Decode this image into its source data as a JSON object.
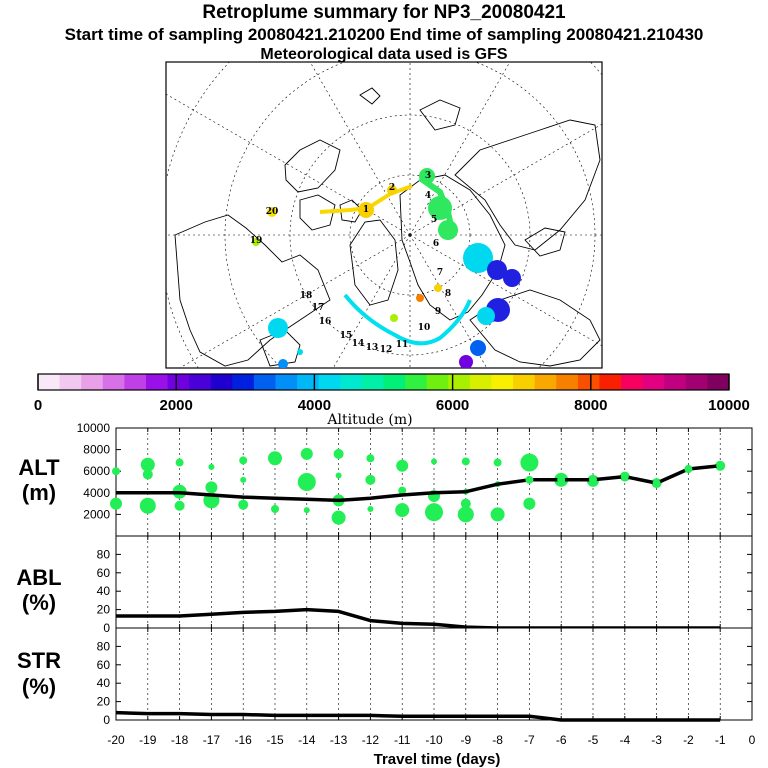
{
  "title": "Retroplume summary for NP3_20080421",
  "subtitle": "Start time of sampling 20080421.210200     End time of sampling 20080421.210430",
  "met_note": "Meteorological data used is GFS",
  "colorbar": {
    "label": "Altitude (m)",
    "ticks": [
      "0",
      "2000",
      "4000",
      "6000",
      "8000",
      "10000"
    ],
    "colors": [
      "#f8e8f8",
      "#f0c8f0",
      "#e8a0e8",
      "#d870e8",
      "#c040e8",
      "#9a10e8",
      "#7000e0",
      "#4a00d8",
      "#2000d0",
      "#0020e0",
      "#0060f0",
      "#0090f8",
      "#00b8f8",
      "#00d8f0",
      "#00e8d0",
      "#00f0a8",
      "#00f078",
      "#30f040",
      "#70f010",
      "#a8f000",
      "#d8f000",
      "#f8f000",
      "#f8d000",
      "#f8a800",
      "#f88000",
      "#f85000",
      "#f82000",
      "#f80060",
      "#e00080",
      "#c00080",
      "#a00070",
      "#800060"
    ]
  },
  "map": {
    "day_labels": [
      "20",
      "19",
      "18",
      "17",
      "16",
      "15",
      "14",
      "13",
      "12",
      "11",
      "10",
      "9",
      "8",
      "7",
      "6",
      "5",
      "4",
      "3",
      "2",
      "1"
    ]
  },
  "chart_data": [
    {
      "type": "line",
      "panel": "ALT",
      "ylabel": "ALT\n(m)",
      "ylabel_line1": "ALT",
      "ylabel_line2": "(m)",
      "ylim": [
        0,
        10000
      ],
      "yticks": [
        2000,
        4000,
        6000,
        8000,
        10000
      ],
      "x": [
        -20,
        -19,
        -18,
        -17,
        -16,
        -15,
        -14,
        -13,
        -12,
        -11,
        -10,
        -9,
        -8,
        -7,
        -6,
        -5,
        -4,
        -3,
        -2,
        -1
      ],
      "series": [
        {
          "name": "mean altitude",
          "values": [
            4000,
            4000,
            4000,
            3800,
            3600,
            3500,
            3400,
            3300,
            3500,
            3800,
            4000,
            4100,
            4800,
            5200,
            5200,
            5200,
            5500,
            4900,
            6200,
            6500
          ]
        }
      ],
      "scatter_color": "#22ee55",
      "scatter": [
        [
          -20,
          6000
        ],
        [
          -20,
          3000
        ],
        [
          -19,
          6600
        ],
        [
          -19,
          5700
        ],
        [
          -19,
          2800
        ],
        [
          -18,
          6800
        ],
        [
          -18,
          4100
        ],
        [
          -18,
          2800
        ],
        [
          -17,
          6400
        ],
        [
          -17,
          4500
        ],
        [
          -17,
          3300
        ],
        [
          -16,
          7000
        ],
        [
          -16,
          5200
        ],
        [
          -16,
          2900
        ],
        [
          -15,
          7200
        ],
        [
          -15,
          2500
        ],
        [
          -14,
          7600
        ],
        [
          -14,
          5000
        ],
        [
          -14,
          2400
        ],
        [
          -13,
          7600
        ],
        [
          -13,
          5600
        ],
        [
          -13,
          3300
        ],
        [
          -13,
          1700
        ],
        [
          -12,
          7200
        ],
        [
          -12,
          5200
        ],
        [
          -12,
          2500
        ],
        [
          -11,
          6500
        ],
        [
          -11,
          4200
        ],
        [
          -11,
          2400
        ],
        [
          -10,
          6900
        ],
        [
          -10,
          3700
        ],
        [
          -10,
          2200
        ],
        [
          -9,
          6900
        ],
        [
          -9,
          4100
        ],
        [
          -9,
          3000
        ],
        [
          -9,
          2000
        ],
        [
          -8,
          6800
        ],
        [
          -8,
          4800
        ],
        [
          -8,
          2000
        ],
        [
          -7,
          6800
        ],
        [
          -7,
          5200
        ],
        [
          -7,
          3000
        ],
        [
          -6,
          5200
        ],
        [
          -5,
          5100
        ],
        [
          -4,
          5500
        ],
        [
          -3,
          4900
        ],
        [
          -2,
          6200
        ],
        [
          -1,
          6500
        ]
      ]
    },
    {
      "type": "line",
      "panel": "ABL",
      "ylabel_line1": "ABL",
      "ylabel_line2": "(%)",
      "ylim": [
        0,
        100
      ],
      "yticks": [
        0,
        20,
        40,
        60,
        80
      ],
      "x": [
        -20,
        -19,
        -18,
        -17,
        -16,
        -15,
        -14,
        -13,
        -12,
        -11,
        -10,
        -9,
        -8,
        -7,
        -6,
        -5,
        -4,
        -3,
        -2,
        -1
      ],
      "series": [
        {
          "name": "ABL fraction",
          "values": [
            13,
            13,
            13,
            15,
            17,
            18,
            20,
            18,
            8,
            5,
            4,
            1,
            0,
            0,
            0,
            0,
            0,
            0,
            0,
            0
          ]
        }
      ]
    },
    {
      "type": "line",
      "panel": "STR",
      "ylabel_line1": "STR",
      "ylabel_line2": "(%)",
      "ylim": [
        0,
        100
      ],
      "yticks": [
        0,
        20,
        40,
        60,
        80
      ],
      "x": [
        -20,
        -19,
        -18,
        -17,
        -16,
        -15,
        -14,
        -13,
        -12,
        -11,
        -10,
        -9,
        -8,
        -7,
        -6,
        -5,
        -4,
        -3,
        -2,
        -1
      ],
      "series": [
        {
          "name": "stratospheric fraction",
          "values": [
            8,
            7,
            7,
            6,
            6,
            5,
            5,
            5,
            5,
            4,
            4,
            4,
            4,
            4,
            0,
            0,
            0,
            0,
            0,
            0
          ]
        }
      ]
    }
  ],
  "xaxis": {
    "label": "Travel time (days)",
    "ticks": [
      "-20",
      "-19",
      "-18",
      "-17",
      "-16",
      "-15",
      "-14",
      "-13",
      "-12",
      "-11",
      "-10",
      "-9",
      "-8",
      "-7",
      "-6",
      "-5",
      "-4",
      "-3",
      "-2",
      "-1",
      "0"
    ]
  }
}
